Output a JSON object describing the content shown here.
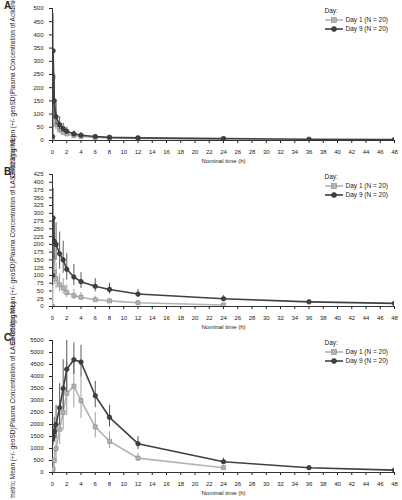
{
  "chart_data": [
    {
      "type": "line",
      "title": "A",
      "xlabel": "Nominal time (h)",
      "ylabel": [
        "Geometric Mean (+/- geoSD)",
        "Plasma Concentration of Aclidinium",
        "(pg/mL)"
      ],
      "legend_title": "Day:",
      "legend": "top-right",
      "x": [
        0,
        0.083,
        0.25,
        0.5,
        1,
        1.5,
        2,
        3,
        4,
        6,
        8,
        12,
        24,
        36,
        48
      ],
      "xlim": [
        0,
        48
      ],
      "xticks": [
        0,
        2,
        4,
        6,
        8,
        10,
        12,
        14,
        16,
        18,
        20,
        22,
        24,
        26,
        28,
        30,
        32,
        34,
        36,
        38,
        40,
        42,
        44,
        46,
        48
      ],
      "ylim": [
        0,
        500
      ],
      "yticks": [
        0,
        50,
        100,
        150,
        200,
        250,
        300,
        350,
        400,
        450,
        500
      ],
      "series": [
        {
          "name": "Day 1 (N = 20)",
          "color": "#b3b3b3",
          "marker": "square",
          "values": [
            0,
            240,
            100,
            60,
            40,
            30,
            25,
            18,
            15,
            12,
            10,
            8,
            5,
            null,
            null
          ],
          "upper": [
            0,
            330,
            145,
            90,
            60,
            45,
            38,
            28,
            23,
            18,
            15,
            12,
            8,
            null,
            null
          ],
          "lower": [
            0,
            170,
            70,
            40,
            27,
            20,
            17,
            12,
            10,
            8,
            7,
            5,
            3,
            null,
            null
          ]
        },
        {
          "name": "Day 9 (N = 20)",
          "color": "#404040",
          "marker": "circle",
          "values": [
            15,
            340,
            150,
            90,
            60,
            45,
            35,
            25,
            20,
            15,
            12,
            10,
            7,
            5,
            4
          ],
          "upper": [
            25,
            480,
            250,
            140,
            90,
            65,
            50,
            37,
            30,
            22,
            18,
            15,
            10,
            8,
            6
          ],
          "lower": [
            9,
            240,
            90,
            58,
            40,
            31,
            24,
            17,
            13,
            10,
            8,
            7,
            5,
            3,
            3
          ]
        }
      ]
    },
    {
      "type": "line",
      "title": "B",
      "xlabel": "Nominal time (h)",
      "ylabel": [
        "Geometric Mean (+/- geoSD)",
        "Plasma Concentration of LAS34823",
        "(pg/mL)"
      ],
      "legend_title": "Day:",
      "legend": "top-right",
      "x": [
        0,
        0.083,
        0.25,
        0.5,
        1,
        1.5,
        2,
        3,
        4,
        6,
        8,
        12,
        24,
        36,
        48
      ],
      "xlim": [
        0,
        48
      ],
      "xticks": [
        0,
        2,
        4,
        6,
        8,
        10,
        12,
        14,
        16,
        18,
        20,
        22,
        24,
        26,
        28,
        30,
        32,
        34,
        36,
        38,
        40,
        42,
        44,
        46,
        48
      ],
      "ylim": [
        0,
        425
      ],
      "yticks": [
        0,
        25,
        50,
        75,
        100,
        125,
        150,
        175,
        200,
        225,
        250,
        275,
        300,
        325,
        350,
        375,
        400,
        425
      ],
      "series": [
        {
          "name": "Day 1 (N = 20)",
          "color": "#b3b3b3",
          "marker": "square",
          "values": [
            0,
            150,
            110,
            90,
            70,
            60,
            45,
            35,
            30,
            22,
            18,
            12,
            5,
            null,
            null
          ],
          "upper": [
            0,
            230,
            170,
            140,
            105,
            90,
            70,
            55,
            45,
            33,
            27,
            18,
            8,
            null,
            null
          ],
          "lower": [
            0,
            98,
            71,
            58,
            47,
            40,
            29,
            22,
            20,
            15,
            12,
            8,
            3,
            null,
            null
          ]
        },
        {
          "name": "Day 9 (N = 20)",
          "color": "#404040",
          "marker": "circle",
          "values": [
            100,
            285,
            210,
            200,
            170,
            150,
            120,
            95,
            80,
            65,
            55,
            40,
            25,
            15,
            10
          ],
          "upper": [
            150,
            380,
            290,
            270,
            240,
            210,
            170,
            135,
            110,
            90,
            75,
            55,
            35,
            21,
            14
          ],
          "lower": [
            67,
            214,
            152,
            148,
            120,
            107,
            85,
            67,
            58,
            47,
            40,
            29,
            18,
            11,
            7
          ]
        }
      ]
    },
    {
      "type": "line",
      "title": "C",
      "xlabel": "Nominal time (h)",
      "ylabel": [
        "Geometric Mean (+/- geoSD)",
        "Plasma Concentration of LAS34850",
        "(pg/mL)"
      ],
      "legend_title": "Day:",
      "legend": "top-right",
      "x": [
        0,
        0.083,
        0.25,
        0.5,
        1,
        1.5,
        2,
        3,
        4,
        6,
        8,
        12,
        24,
        36,
        48
      ],
      "xlim": [
        0,
        48
      ],
      "xticks": [
        0,
        2,
        4,
        6,
        8,
        10,
        12,
        14,
        16,
        18,
        20,
        22,
        24,
        26,
        28,
        30,
        32,
        34,
        36,
        38,
        40,
        42,
        44,
        46,
        48
      ],
      "ylim": [
        0,
        5500
      ],
      "yticks": [
        0,
        500,
        1000,
        1500,
        2000,
        2500,
        3000,
        3500,
        4000,
        4500,
        5000,
        5500
      ],
      "series": [
        {
          "name": "Day 1 (N = 20)",
          "color": "#b3b3b3",
          "marker": "square",
          "values": [
            0,
            150,
            500,
            1000,
            1800,
            2500,
            3300,
            3600,
            3000,
            1900,
            1300,
            600,
            200,
            null,
            null
          ],
          "upper": [
            0,
            400,
            1000,
            1800,
            2800,
            3600,
            4600,
            4800,
            4000,
            2500,
            1700,
            800,
            280,
            null,
            null
          ],
          "lower": [
            0,
            56,
            250,
            560,
            1160,
            1740,
            2370,
            2700,
            2250,
            1440,
            990,
            450,
            143,
            null,
            null
          ]
        },
        {
          "name": "Day 9 (N = 20)",
          "color": "#404040",
          "marker": "circle",
          "values": [
            1400,
            1500,
            1700,
            2000,
            2700,
            3500,
            4300,
            4700,
            4600,
            3200,
            2300,
            1200,
            450,
            200,
            100
          ],
          "upper": [
            1900,
            2000,
            2300,
            2800,
            3700,
            4700,
            5500,
            5400,
            5300,
            3800,
            2800,
            1500,
            600,
            270,
            140
          ],
          "lower": [
            1030,
            1125,
            1260,
            1430,
            1970,
            2600,
            3360,
            4090,
            3990,
            2700,
            1890,
            960,
            338,
            148,
            71
          ]
        }
      ]
    }
  ]
}
